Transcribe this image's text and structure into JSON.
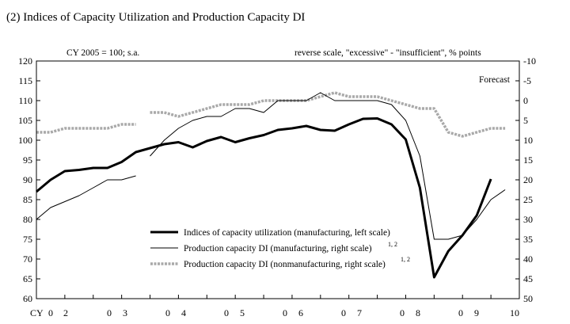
{
  "chart_data": {
    "type": "line",
    "title": "(2) Indices of Capacity Utilization and Production Capacity DI",
    "left_axis_label": "CY 2005 = 100; s.a.",
    "right_axis_label": "reverse scale, \"excessive\" - \"insufficient\", % points",
    "forecast_label": "Forecast",
    "left_axis": {
      "min": 60,
      "max": 120,
      "step": 5,
      "ticks": [
        "60",
        "65",
        "70",
        "75",
        "80",
        "85",
        "90",
        "95",
        "100",
        "105",
        "110",
        "115",
        "120"
      ]
    },
    "right_axis": {
      "min": -10,
      "max": 50,
      "reverse": true,
      "step": 5,
      "ticks": [
        "-10",
        "-5",
        "0",
        "5",
        "10",
        "15",
        "20",
        "25",
        "30",
        "35",
        "40",
        "45",
        "50"
      ]
    },
    "x_axis": {
      "prefix": "CY",
      "year_labels": [
        "0",
        "2",
        "0",
        "3",
        "0",
        "4",
        "0",
        "5",
        "0",
        "6",
        "0",
        "7",
        "0",
        "8",
        "0",
        "9",
        "10"
      ],
      "period_start": 2002.0,
      "period_end": 2010.5
    },
    "series": [
      {
        "name": "Indices of capacity utilization (manufacturing, left scale)",
        "axis": "left",
        "style": "thick-black",
        "x": [
          2002.0,
          2002.25,
          2002.5,
          2002.75,
          2003.0,
          2003.25,
          2003.5,
          2003.75,
          2004.0,
          2004.25,
          2004.5,
          2004.75,
          2005.0,
          2005.25,
          2005.5,
          2005.75,
          2006.0,
          2006.25,
          2006.5,
          2006.75,
          2007.0,
          2007.25,
          2007.5,
          2007.75,
          2008.0,
          2008.25,
          2008.5,
          2008.75,
          2009.0,
          2009.25,
          2009.5,
          2009.75,
          2010.0
        ],
        "values": [
          87,
          90,
          92.2,
          92.5,
          93,
          93,
          94.5,
          97,
          98,
          99,
          99.5,
          98.2,
          99.8,
          100.8,
          99.5,
          100.5,
          101.3,
          102.6,
          103,
          103.6,
          102.6,
          102.4,
          104,
          105.4,
          105.5,
          104,
          100.2,
          88,
          65.4,
          72,
          76,
          81,
          90.2
        ]
      },
      {
        "name": "Production capacity DI (manufacturing, right scale)",
        "superscript": "1, 2",
        "axis": "right",
        "style": "thin-black",
        "x": [
          2002.0,
          2002.25,
          2002.5,
          2002.75,
          2003.0,
          2003.25,
          2003.5,
          2003.75,
          2004.0,
          2004.25,
          2004.5,
          2004.75,
          2005.0,
          2005.25,
          2005.5,
          2005.75,
          2006.0,
          2006.25,
          2006.5,
          2006.75,
          2007.0,
          2007.25,
          2007.5,
          2007.75,
          2008.0,
          2008.25,
          2008.5,
          2008.75,
          2009.0,
          2009.25,
          2009.5,
          2009.75,
          2010.0,
          2010.25
        ],
        "values": [
          30,
          27,
          25.5,
          24,
          22,
          20,
          20,
          19,
          14,
          10,
          7,
          5,
          4,
          4,
          2,
          2,
          3,
          0,
          0,
          0,
          -2,
          0,
          0,
          0,
          0,
          1,
          5,
          14,
          35,
          35,
          34,
          30,
          25,
          22.5
        ],
        "break_after_index": 7
      },
      {
        "name": "Production capacity DI (nonmanufacturing, right scale)",
        "superscript": "1, 2",
        "axis": "right",
        "style": "thick-gray-dotted",
        "x": [
          2002.0,
          2002.25,
          2002.5,
          2002.75,
          2003.0,
          2003.25,
          2003.5,
          2003.75,
          2004.0,
          2004.25,
          2004.5,
          2004.75,
          2005.0,
          2005.25,
          2005.5,
          2005.75,
          2006.0,
          2006.25,
          2006.5,
          2006.75,
          2007.0,
          2007.25,
          2007.5,
          2007.75,
          2008.0,
          2008.25,
          2008.5,
          2008.75,
          2009.0,
          2009.25,
          2009.5,
          2009.75,
          2010.0,
          2010.25
        ],
        "values": [
          8,
          8,
          7,
          7,
          7,
          7,
          6,
          6,
          3,
          3,
          4,
          3,
          2,
          1,
          1,
          1,
          0,
          0,
          0,
          0,
          -1,
          -2,
          -1,
          -1,
          -1,
          0,
          1,
          2,
          2,
          8,
          9,
          8,
          7,
          7
        ],
        "break_after_index": 7
      }
    ],
    "legend_position": "bottom-center"
  }
}
